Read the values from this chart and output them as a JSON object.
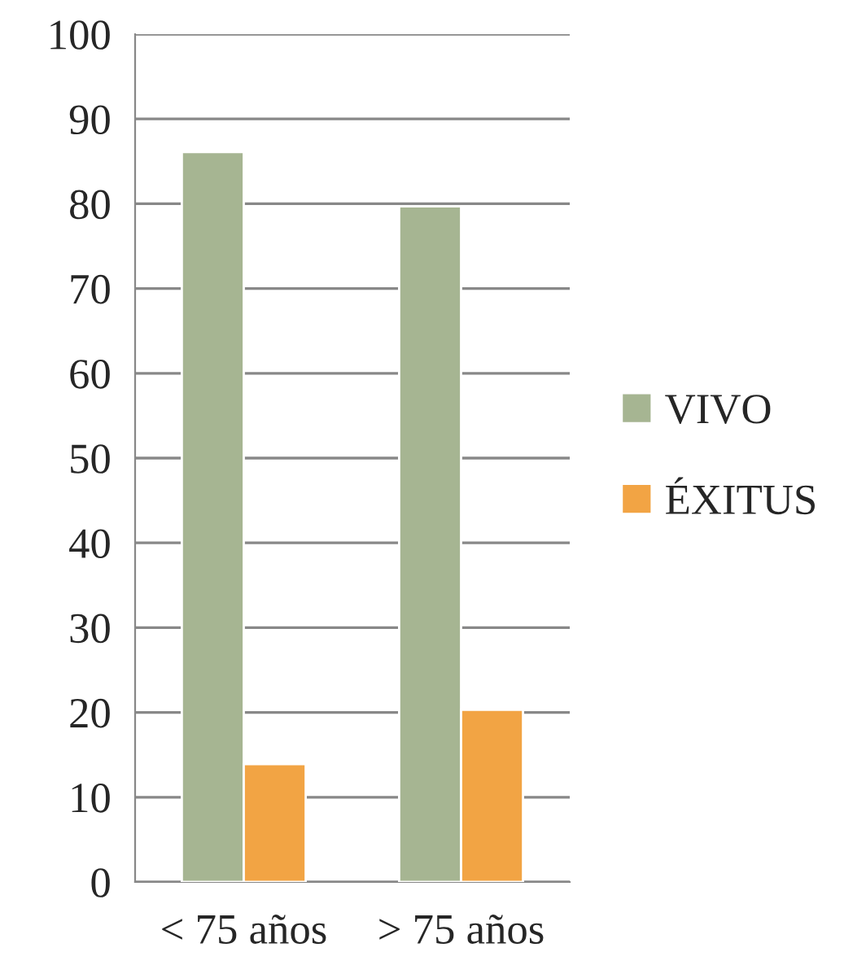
{
  "chart_data": {
    "type": "bar",
    "categories": [
      "< 75 años",
      "> 75 años"
    ],
    "series": [
      {
        "name": "VIVO",
        "color": "#a6b592",
        "values": [
          86.1,
          79.7
        ]
      },
      {
        "name": "ÉXITUS",
        "color": "#f2a444",
        "values": [
          13.9,
          20.3
        ]
      }
    ],
    "ylim": [
      0,
      100
    ],
    "yticks": [
      0,
      10,
      20,
      30,
      40,
      50,
      60,
      70,
      80,
      90,
      100
    ],
    "grid": "y",
    "legend": "right"
  }
}
